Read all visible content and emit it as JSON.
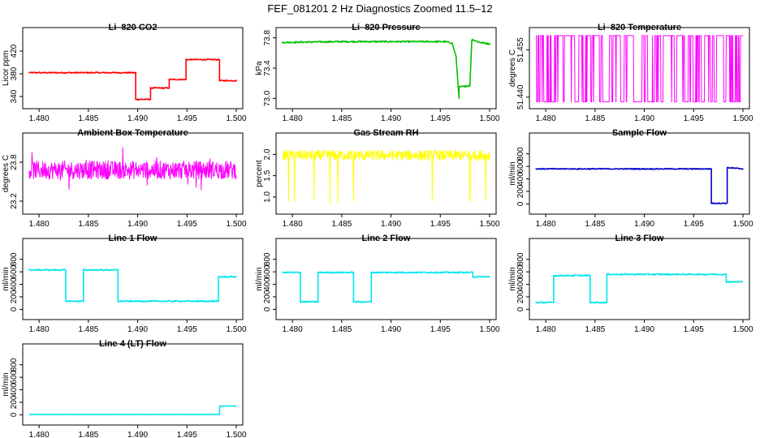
{
  "title": "FEF_081201  2 Hz Diagnostics Zoomed 11.5–12",
  "chart_data": [
    {
      "type": "line",
      "title": "Li–820 CO2",
      "ylabel": "Licor ppm",
      "color": "#ff0000",
      "xlim": [
        1.479,
        1.5
      ],
      "ylim": [
        330,
        450
      ],
      "xticks": [
        "1.480",
        "1.485",
        "1.490",
        "1.495",
        "1.500"
      ],
      "yticks": [
        "340",
        "380",
        "420"
      ],
      "noise": 1.0,
      "series": [
        {
          "x": [
            1.479,
            1.4898,
            1.4898,
            1.4913,
            1.4913,
            1.4932,
            1.4932,
            1.4949,
            1.4949,
            1.4983,
            1.4983,
            1.5
          ],
          "y": [
            382,
            382,
            335,
            335,
            355,
            355,
            370,
            370,
            405,
            405,
            368,
            368
          ]
        }
      ]
    },
    {
      "type": "line",
      "title": "Li–820 Pressure",
      "ylabel": "kPa",
      "color": "#00c000",
      "xlim": [
        1.479,
        1.5
      ],
      "ylim": [
        72.95,
        73.85
      ],
      "xticks": [
        "1.480",
        "1.485",
        "1.490",
        "1.495",
        "1.500"
      ],
      "yticks": [
        "73.0",
        "73.4",
        "73.8"
      ],
      "noise": 0.01,
      "series": [
        {
          "x": [
            1.479,
            1.485,
            1.49,
            1.4955,
            1.4962,
            1.4966,
            1.4969,
            1.4969,
            1.4975,
            1.498,
            1.4982,
            1.499,
            1.5
          ],
          "y": [
            73.74,
            73.75,
            73.75,
            73.75,
            73.73,
            73.55,
            73.0,
            73.15,
            73.16,
            73.17,
            73.78,
            73.74,
            73.72
          ]
        }
      ]
    },
    {
      "type": "line",
      "title": "Li–820 Temperature",
      "ylabel": "degrees C",
      "color": "#ff00ff",
      "style": "binary",
      "xlim": [
        1.479,
        1.5
      ],
      "ylim": [
        51.4384,
        51.46
      ],
      "xticks": [
        "1.480",
        "1.485",
        "1.490",
        "1.495",
        "1.500"
      ],
      "yticks": [
        "51.440",
        "51.455"
      ],
      "series": [
        {
          "low": 51.4385,
          "high": 51.4595
        }
      ]
    },
    {
      "type": "line",
      "title": "Ambient Box Temperature",
      "ylabel": "degrees C",
      "color": "#ff00ff",
      "style": "noise",
      "xlim": [
        1.479,
        1.5
      ],
      "ylim": [
        23.1,
        24.15
      ],
      "xticks": [
        "1.480",
        "1.485",
        "1.490",
        "1.495",
        "1.500"
      ],
      "yticks": [
        "23.2",
        "23.8"
      ],
      "series": [
        {
          "center": 23.68,
          "spread": 0.14,
          "spike": 0.25
        }
      ]
    },
    {
      "type": "line",
      "title": "Gas Stream RH",
      "ylabel": "percent",
      "color": "#ffff00",
      "style": "noise",
      "xlim": [
        1.479,
        1.5
      ],
      "ylim": [
        0.75,
        2.35
      ],
      "xticks": [
        "1.480",
        "1.485",
        "1.490",
        "1.495",
        "1.500"
      ],
      "yticks": [
        "1.0",
        "1.5",
        "2.0"
      ],
      "series": [
        {
          "center": 1.98,
          "spread": 0.12,
          "dips": [
            1.4796,
            1.4802,
            1.4822,
            1.4838,
            1.4846,
            1.4862,
            1.4942,
            1.498,
            1.4996
          ],
          "dip_to": 0.85
        }
      ]
    },
    {
      "type": "line",
      "title": "Sample Flow",
      "ylabel": "ml/min",
      "color": "#0000cc",
      "xlim": [
        1.479,
        1.5
      ],
      "ylim": [
        -60,
        1030
      ],
      "xticks": [
        "1.480",
        "1.485",
        "1.490",
        "1.495",
        "1.500"
      ],
      "yticks": [
        "0",
        "200",
        "400",
        "600",
        "800"
      ],
      "noise": 8,
      "series": [
        {
          "x": [
            1.479,
            1.4968,
            1.4968,
            1.4984,
            1.4984,
            1.5
          ],
          "y": [
            560,
            560,
            10,
            10,
            580,
            560
          ]
        }
      ]
    },
    {
      "type": "line",
      "title": "Line 1 Flow",
      "ylabel": "ml/min",
      "color": "#00e5ee",
      "xlim": [
        1.479,
        1.5
      ],
      "ylim": [
        -60,
        1030
      ],
      "xticks": [
        "1.480",
        "1.485",
        "1.490",
        "1.495",
        "1.500"
      ],
      "yticks": [
        "0",
        "200",
        "400",
        "600",
        "800"
      ],
      "noise": 10,
      "series": [
        {
          "x": [
            1.479,
            1.4827,
            1.4827,
            1.4845,
            1.4845,
            1.488,
            1.488,
            1.4982,
            1.4982,
            1.5
          ],
          "y": [
            630,
            630,
            130,
            130,
            630,
            630,
            130,
            130,
            520,
            520
          ]
        }
      ]
    },
    {
      "type": "line",
      "title": "Line 2 Flow",
      "ylabel": "ml/min",
      "color": "#00e5ee",
      "xlim": [
        1.479,
        1.5
      ],
      "ylim": [
        -60,
        1030
      ],
      "xticks": [
        "1.480",
        "1.485",
        "1.490",
        "1.495",
        "1.500"
      ],
      "yticks": [
        "0",
        "200",
        "400",
        "600",
        "800"
      ],
      "noise": 10,
      "series": [
        {
          "x": [
            1.479,
            1.4808,
            1.4808,
            1.4826,
            1.4826,
            1.4862,
            1.4862,
            1.488,
            1.488,
            1.4983,
            1.4983,
            1.5
          ],
          "y": [
            590,
            590,
            120,
            120,
            590,
            590,
            120,
            120,
            590,
            590,
            520,
            520
          ]
        }
      ]
    },
    {
      "type": "line",
      "title": "Line 3 Flow",
      "ylabel": "ml/min",
      "color": "#00e5ee",
      "xlim": [
        1.479,
        1.5
      ],
      "ylim": [
        -60,
        1030
      ],
      "xticks": [
        "1.480",
        "1.485",
        "1.490",
        "1.495",
        "1.500"
      ],
      "yticks": [
        "0",
        "200",
        "400",
        "600",
        "800"
      ],
      "noise": 10,
      "series": [
        {
          "x": [
            1.479,
            1.4808,
            1.4808,
            1.4845,
            1.4845,
            1.4862,
            1.4862,
            1.4983,
            1.4983,
            1.5
          ],
          "y": [
            110,
            110,
            540,
            540,
            110,
            110,
            560,
            560,
            440,
            440
          ]
        }
      ]
    },
    {
      "type": "line",
      "title": "Line 4 (LT) Flow",
      "ylabel": "ml/min",
      "color": "#00e5ee",
      "xlim": [
        1.479,
        1.5
      ],
      "ylim": [
        -60,
        1030
      ],
      "xticks": [
        "1.480",
        "1.485",
        "1.490",
        "1.495",
        "1.500"
      ],
      "yticks": [
        "0",
        "200",
        "400",
        "600",
        "800"
      ],
      "noise": 3,
      "series": [
        {
          "x": [
            1.479,
            1.4983,
            1.4983,
            1.5
          ],
          "y": [
            5,
            5,
            140,
            140
          ]
        }
      ]
    }
  ]
}
